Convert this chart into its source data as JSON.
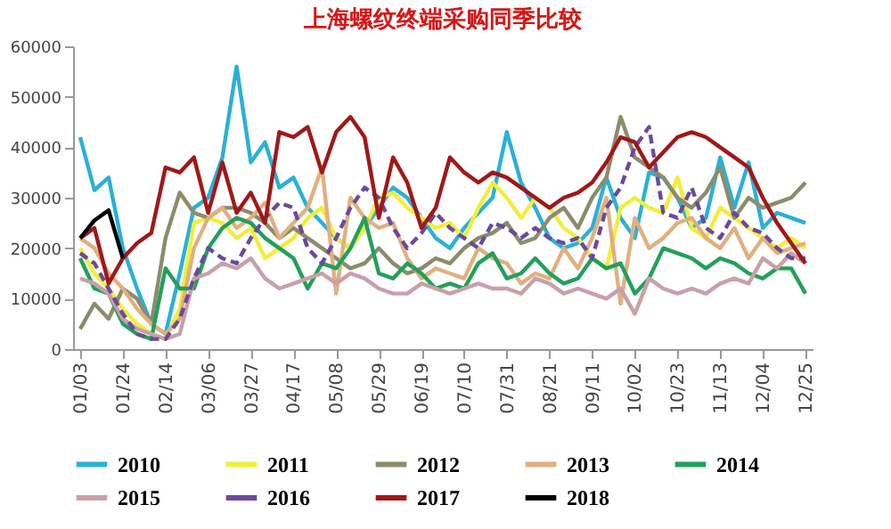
{
  "chart_data": {
    "type": "line",
    "title": "上海螺纹终端采购同季比较",
    "categories": [
      "01/03",
      null,
      null,
      "01/24",
      null,
      null,
      "02/14",
      null,
      null,
      "03/06",
      null,
      null,
      "03/27",
      null,
      null,
      "04/17",
      null,
      null,
      "05/08",
      null,
      null,
      "05/29",
      null,
      null,
      "06/19",
      null,
      null,
      "07/10",
      null,
      null,
      "07/31",
      null,
      null,
      "08/21",
      null,
      null,
      "09/11",
      null,
      null,
      "10/02",
      null,
      null,
      "10/23",
      null,
      null,
      "11/13",
      null,
      null,
      "12/04",
      null,
      null,
      "12/25"
    ],
    "ylim": [
      0,
      60000
    ],
    "yticks": [
      0,
      10000,
      20000,
      30000,
      40000,
      50000,
      60000
    ],
    "grid": false,
    "legend": "bottom",
    "series": [
      {
        "name": "2010",
        "color": "#2bb0d8",
        "values": [
          42000,
          31500,
          34000,
          20000,
          12000,
          5000,
          3000,
          15000,
          28000,
          30000,
          38000,
          56000,
          37000,
          41000,
          32000,
          34000,
          28000,
          25000,
          22000,
          20000,
          24000,
          28000,
          32000,
          30000,
          26000,
          22000,
          20000,
          24000,
          27000,
          30000,
          43000,
          33000,
          28000,
          22000,
          20000,
          21000,
          24000,
          34000,
          26000,
          22000,
          35000,
          34000,
          30000,
          24000,
          26000,
          38000,
          28000,
          37000,
          24000,
          27000,
          26000,
          25000
        ]
      },
      {
        "name": "2011",
        "color": "#f2ee3a",
        "values": [
          20000,
          15000,
          12000,
          8000,
          5000,
          3000,
          2000,
          8000,
          25000,
          26000,
          25000,
          22000,
          24000,
          18000,
          20000,
          22000,
          26000,
          28000,
          22000,
          20000,
          24000,
          30000,
          31000,
          28000,
          26000,
          24000,
          25000,
          22000,
          28000,
          33000,
          30000,
          26000,
          30000,
          28000,
          24000,
          22000,
          18000,
          16000,
          28000,
          30000,
          28000,
          27000,
          34000,
          24000,
          22000,
          28000,
          26000,
          24000,
          22000,
          20000,
          22000,
          20000
        ]
      },
      {
        "name": "2012",
        "color": "#8c8c6c",
        "values": [
          4000,
          9000,
          6000,
          12000,
          10000,
          5000,
          22000,
          31000,
          27000,
          26000,
          28000,
          28000,
          27000,
          25000,
          22000,
          24000,
          22000,
          20000,
          18000,
          16000,
          17000,
          20000,
          17000,
          15000,
          16000,
          18000,
          17000,
          20000,
          22000,
          23000,
          25000,
          21000,
          22000,
          26000,
          28000,
          24000,
          30000,
          34000,
          46000,
          38000,
          36000,
          34000,
          30000,
          28000,
          31000,
          36000,
          26000,
          30000,
          28000,
          29000,
          30000,
          33000
        ]
      },
      {
        "name": "2013",
        "color": "#e0b080",
        "values": [
          22000,
          20000,
          15000,
          12000,
          8000,
          5000,
          3000,
          6000,
          20000,
          26000,
          28000,
          24000,
          26000,
          29000,
          22000,
          25000,
          28000,
          36000,
          11000,
          30000,
          26000,
          24000,
          25000,
          18000,
          14000,
          16000,
          15000,
          14000,
          20000,
          18000,
          17000,
          13000,
          15000,
          14000,
          20000,
          16000,
          22000,
          30000,
          9000,
          26000,
          20000,
          22000,
          25000,
          26000,
          22000,
          20000,
          24000,
          18000,
          22000,
          19000,
          20000,
          21000
        ]
      },
      {
        "name": "2014",
        "color": "#22a05a",
        "values": [
          18000,
          12000,
          11000,
          5000,
          3000,
          2000,
          16000,
          12000,
          12000,
          20000,
          24000,
          26000,
          25000,
          22000,
          20000,
          18000,
          12000,
          17000,
          16000,
          20000,
          26000,
          15000,
          14000,
          17000,
          15000,
          12000,
          13000,
          12000,
          17000,
          19000,
          14000,
          15000,
          18000,
          15000,
          13000,
          14000,
          18000,
          16000,
          17000,
          11000,
          14000,
          20000,
          19000,
          18000,
          16000,
          18000,
          17000,
          15000,
          14000,
          16000,
          16000,
          11000
        ]
      },
      {
        "name": "2015",
        "color": "#c9a0a8",
        "values": [
          14000,
          13000,
          11000,
          6000,
          4000,
          3000,
          2000,
          3000,
          14000,
          15000,
          17000,
          16000,
          18000,
          14000,
          12000,
          13000,
          14000,
          15000,
          13000,
          15000,
          14000,
          12000,
          11000,
          11000,
          13000,
          12000,
          11000,
          12000,
          13000,
          12000,
          12000,
          11000,
          14000,
          13000,
          11000,
          12000,
          11000,
          10000,
          12000,
          7000,
          14000,
          12000,
          11000,
          12000,
          11000,
          13000,
          14000,
          13000,
          18000,
          16000,
          19000,
          17000
        ]
      },
      {
        "name": "2016",
        "color": "#6a4a9a",
        "line_style": "dashed",
        "values": [
          19000,
          17000,
          12000,
          7000,
          3000,
          2000,
          2000,
          6000,
          14000,
          20000,
          18000,
          17000,
          22000,
          26000,
          29000,
          28000,
          20000,
          17000,
          22000,
          28000,
          32000,
          30000,
          24000,
          20000,
          23000,
          27000,
          24000,
          22000,
          20000,
          25000,
          24000,
          22000,
          24000,
          22000,
          21000,
          22000,
          18000,
          28000,
          32000,
          40000,
          44000,
          27000,
          26000,
          32000,
          24000,
          22000,
          27000,
          24000,
          23000,
          20000,
          18000,
          18000
        ]
      },
      {
        "name": "2017",
        "color": "#a01818",
        "values": [
          22000,
          24000,
          13000,
          18000,
          21000,
          23000,
          36000,
          35000,
          38000,
          27000,
          37000,
          27000,
          31000,
          25000,
          43000,
          42000,
          44000,
          35000,
          43000,
          46000,
          42000,
          26000,
          38000,
          33000,
          24000,
          28000,
          38000,
          35000,
          33000,
          35000,
          34000,
          32000,
          30000,
          28000,
          30000,
          31000,
          33000,
          37000,
          42000,
          41000,
          36000,
          39000,
          42000,
          43000,
          42000,
          40000,
          38000,
          36000,
          30000,
          25000,
          21000,
          17000
        ]
      },
      {
        "name": "2018",
        "color": "#000000",
        "values": [
          22000,
          25500,
          27500,
          18000,
          null,
          null,
          null,
          null,
          null,
          null,
          null,
          null,
          null,
          null,
          null,
          null,
          null,
          null,
          null,
          null,
          null,
          null,
          null,
          null,
          null,
          null,
          null,
          null,
          null,
          null,
          null,
          null,
          null,
          null,
          null,
          null,
          null,
          null,
          null,
          null,
          null,
          null,
          null,
          null,
          null,
          null,
          null,
          null,
          null,
          null,
          null,
          null
        ]
      }
    ]
  }
}
